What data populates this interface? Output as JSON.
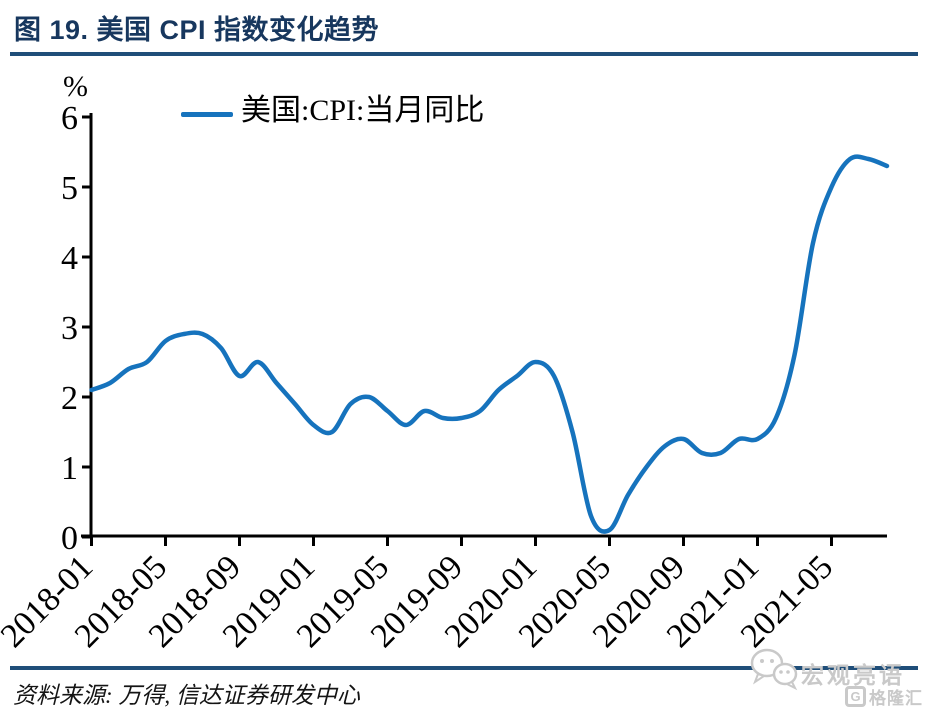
{
  "page": {
    "title": "图 19. 美国 CPI 指数变化趋势"
  },
  "colors": {
    "accent_rule": "#1f4e79",
    "title_text": "#17375e",
    "line": "#1673bd",
    "axis": "#000000",
    "watermark_gray": "#c9c9c9"
  },
  "legend": {
    "label": "美国:CPI:当月同比"
  },
  "footer": {
    "source": "资料来源: 万得, 信达证券研发中心"
  },
  "watermarks": {
    "wechat_name": "宏观亮语",
    "gelonghui_icon_letter": "G",
    "gelonghui_label": "格隆汇"
  },
  "chart_data": {
    "type": "line",
    "title": "图 19. 美国 CPI 指数变化趋势",
    "xlabel": "",
    "ylabel": "%",
    "ylim": [
      0,
      6
    ],
    "y_ticks": [
      0,
      1,
      2,
      3,
      4,
      5,
      6
    ],
    "x_tick_labels": [
      "2018-01",
      "2018-05",
      "2018-09",
      "2019-01",
      "2019-05",
      "2019-09",
      "2020-01",
      "2020-05",
      "2020-09",
      "2021-01",
      "2021-05"
    ],
    "x_tick_every_months": 4,
    "grid": false,
    "legend_position": "top-center",
    "x": [
      "2018-01",
      "2018-02",
      "2018-03",
      "2018-04",
      "2018-05",
      "2018-06",
      "2018-07",
      "2018-08",
      "2018-09",
      "2018-10",
      "2018-11",
      "2018-12",
      "2019-01",
      "2019-02",
      "2019-03",
      "2019-04",
      "2019-05",
      "2019-06",
      "2019-07",
      "2019-08",
      "2019-09",
      "2019-10",
      "2019-11",
      "2019-12",
      "2020-01",
      "2020-02",
      "2020-03",
      "2020-04",
      "2020-05",
      "2020-06",
      "2020-07",
      "2020-08",
      "2020-09",
      "2020-10",
      "2020-11",
      "2020-12",
      "2021-01",
      "2021-02",
      "2021-03",
      "2021-04",
      "2021-05",
      "2021-06",
      "2021-07",
      "2021-08"
    ],
    "series": [
      {
        "name": "美国:CPI:当月同比",
        "color": "#1673bd",
        "values": [
          2.1,
          2.2,
          2.4,
          2.5,
          2.8,
          2.9,
          2.9,
          2.7,
          2.3,
          2.5,
          2.2,
          1.9,
          1.6,
          1.5,
          1.9,
          2.0,
          1.8,
          1.6,
          1.8,
          1.7,
          1.7,
          1.8,
          2.1,
          2.3,
          2.5,
          2.3,
          1.5,
          0.3,
          0.1,
          0.6,
          1.0,
          1.3,
          1.4,
          1.2,
          1.2,
          1.4,
          1.4,
          1.7,
          2.6,
          4.2,
          5.0,
          5.4,
          5.4,
          5.3
        ]
      }
    ]
  }
}
